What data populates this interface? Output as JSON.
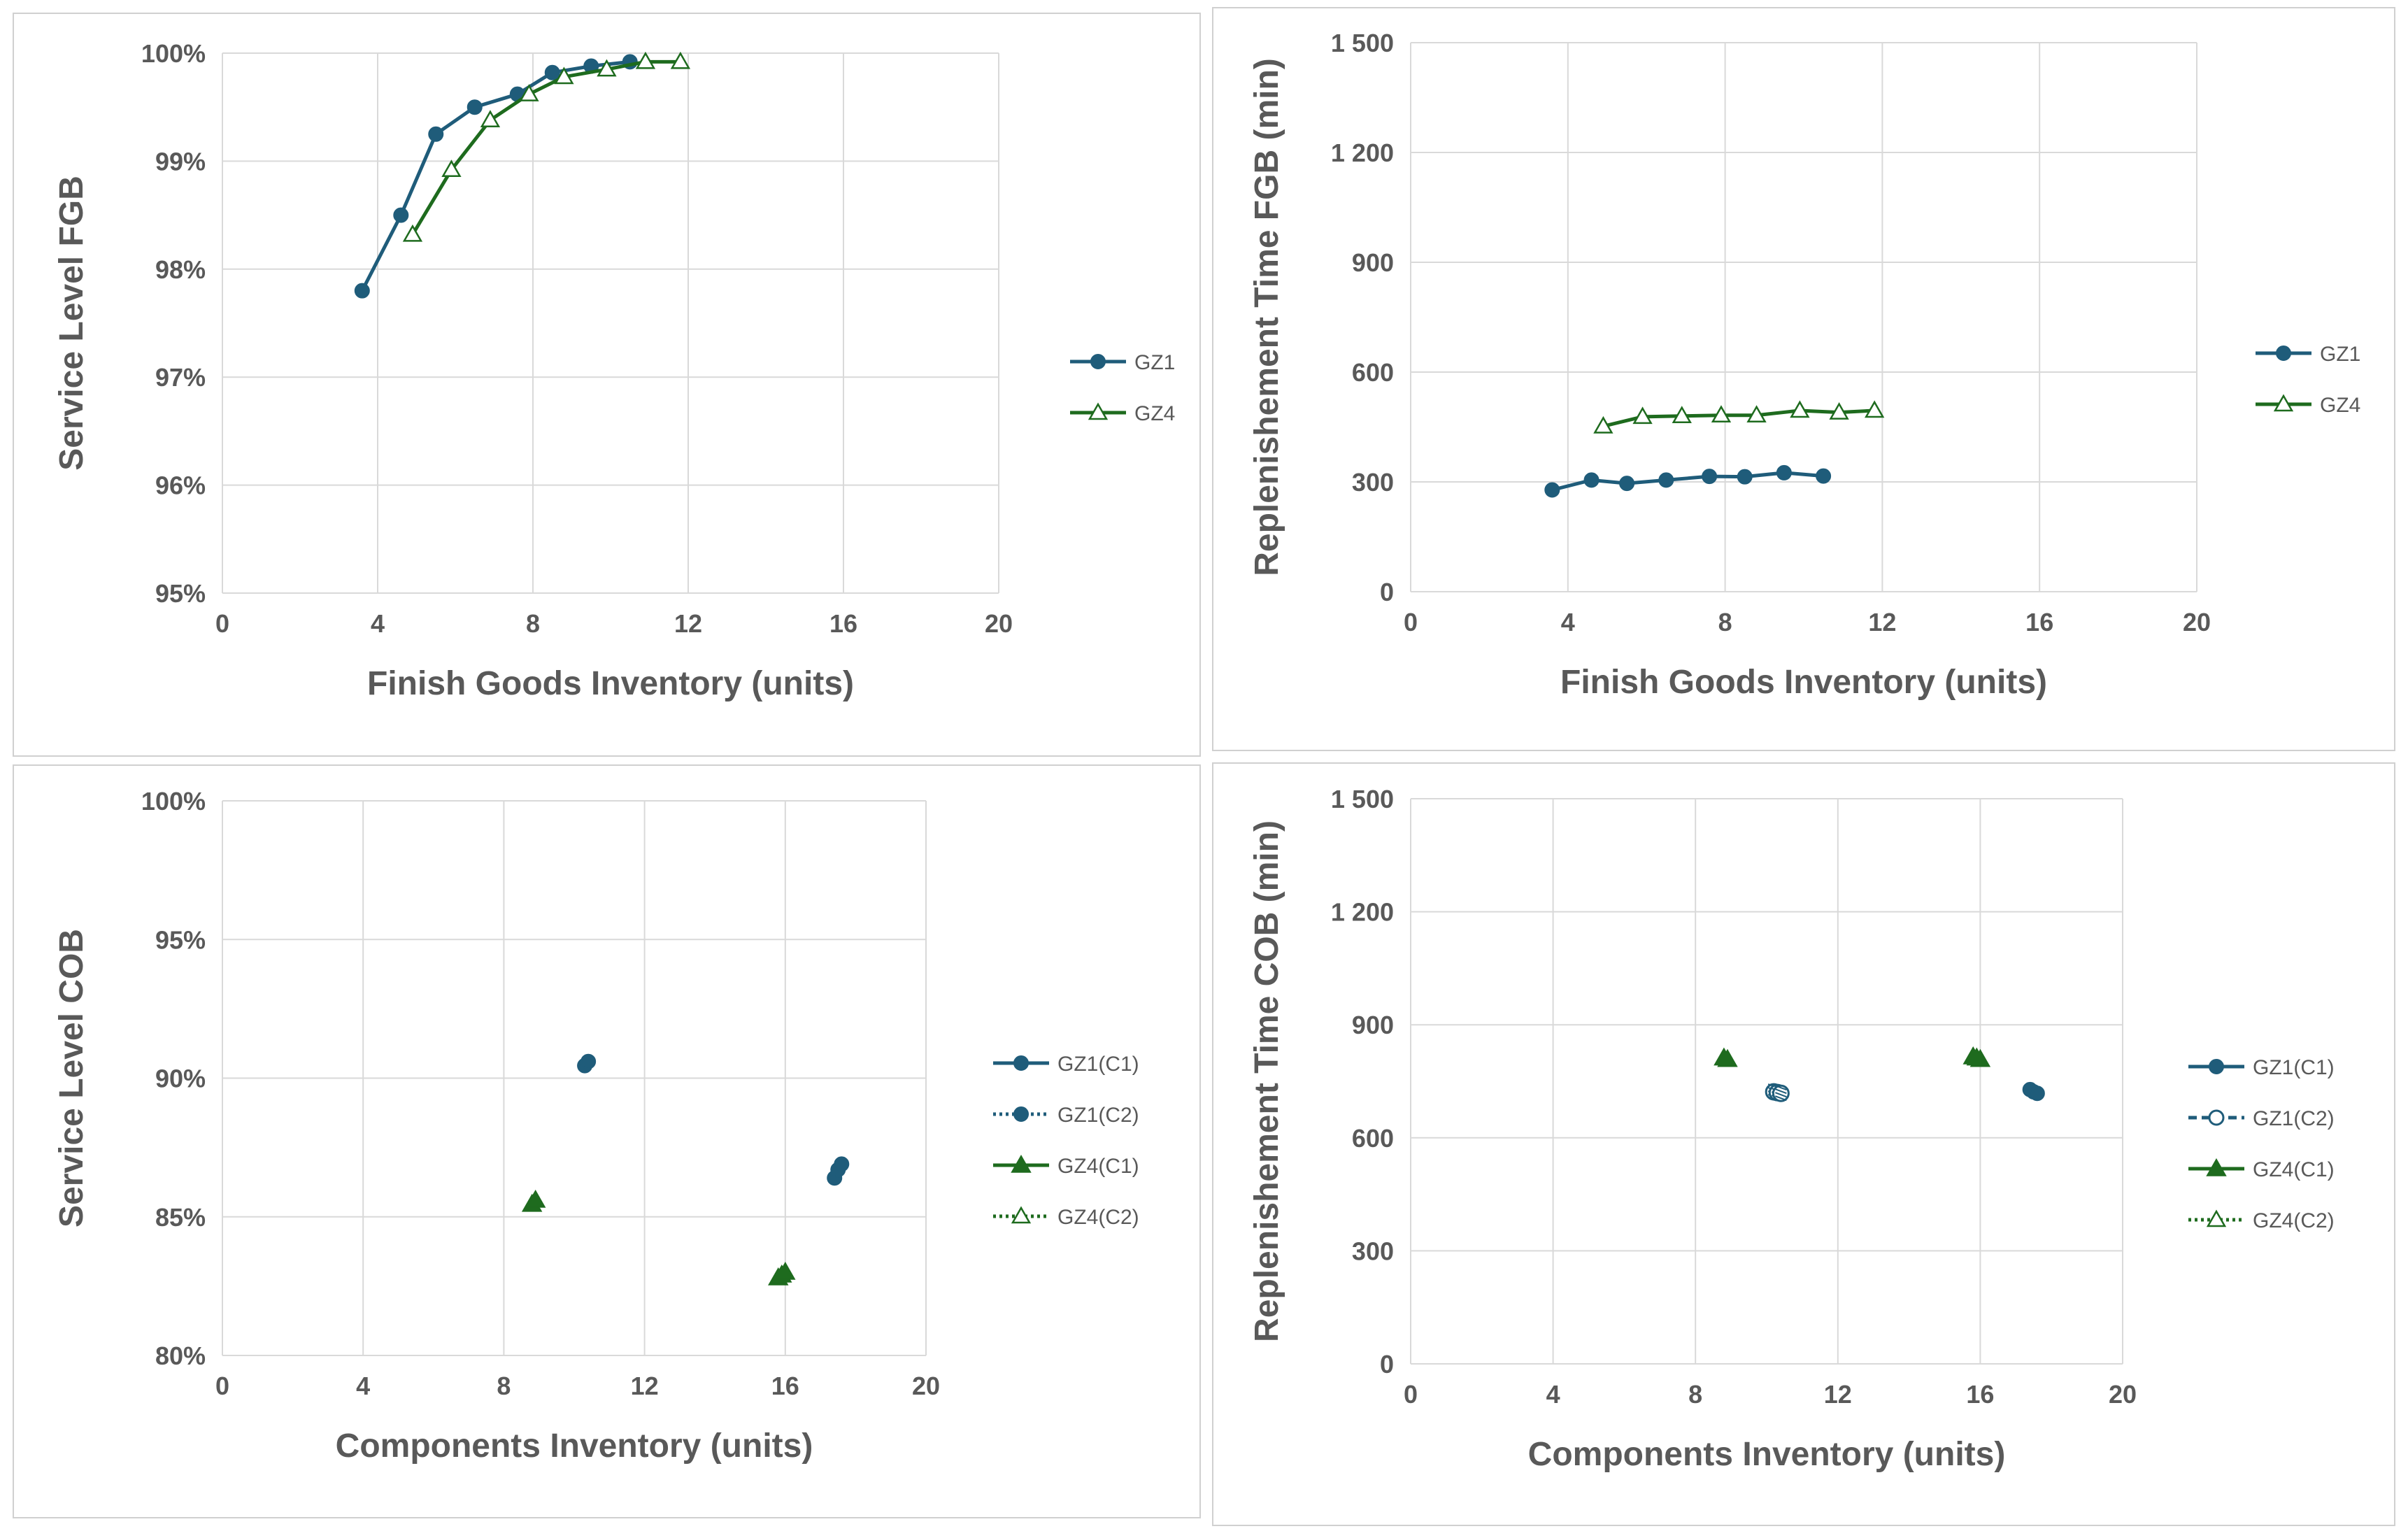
{
  "colors": {
    "gz1": "#1f5c7a",
    "gz4": "#1e6b1e",
    "grid": "#d9d9d9",
    "text": "#595959"
  },
  "chart_data": [
    {
      "type": "line",
      "xlabel": "Finish Goods Inventory  (units)",
      "ylabel": "Service Level FGB",
      "xlim": [
        0,
        20
      ],
      "ylim": [
        95,
        100
      ],
      "xticks": [
        0,
        4,
        8,
        12,
        16,
        20
      ],
      "xtick_labels": [
        "0",
        "4",
        "8",
        "12",
        "16",
        "20"
      ],
      "yticks": [
        95,
        96,
        97,
        98,
        99,
        100
      ],
      "ytick_labels": [
        "95%",
        "96%",
        "97%",
        "98%",
        "99%",
        "100%"
      ],
      "grid": true,
      "legend_position": "right",
      "series": [
        {
          "name": "GZ1",
          "color": "#1f5c7a",
          "marker": "circle",
          "line": "solid",
          "x": [
            3.6,
            4.6,
            5.5,
            6.5,
            7.6,
            8.5,
            9.5,
            10.5
          ],
          "y": [
            97.8,
            98.5,
            99.25,
            99.5,
            99.62,
            99.82,
            99.88,
            99.92
          ]
        },
        {
          "name": "GZ4",
          "color": "#1e6b1e",
          "marker": "triangle-open",
          "line": "solid",
          "x": [
            4.9,
            5.9,
            6.9,
            7.9,
            8.8,
            9.9,
            10.9,
            11.8
          ],
          "y": [
            98.32,
            98.92,
            99.38,
            99.62,
            99.78,
            99.85,
            99.92,
            99.92
          ]
        }
      ]
    },
    {
      "type": "line",
      "xlabel": "Finish Goods Inventory  (units)",
      "ylabel": "Replenishement Time FGB (min)",
      "xlim": [
        0,
        20
      ],
      "ylim": [
        0,
        1500
      ],
      "xticks": [
        0,
        4,
        8,
        12,
        16,
        20
      ],
      "xtick_labels": [
        "0",
        "4",
        "8",
        "12",
        "16",
        "20"
      ],
      "yticks": [
        0,
        300,
        600,
        900,
        1200,
        1500
      ],
      "ytick_labels": [
        "0",
        "300",
        "600",
        "900",
        "1 200",
        "1 500"
      ],
      "grid": true,
      "legend_position": "right",
      "series": [
        {
          "name": "GZ1",
          "color": "#1f5c7a",
          "marker": "circle",
          "line": "solid",
          "x": [
            3.6,
            4.6,
            5.5,
            6.5,
            7.6,
            8.5,
            9.5,
            10.5
          ],
          "y": [
            278,
            305,
            296,
            305,
            315,
            314,
            325,
            316
          ]
        },
        {
          "name": "GZ4",
          "color": "#1e6b1e",
          "marker": "triangle-open",
          "line": "solid",
          "x": [
            4.9,
            5.9,
            6.9,
            7.9,
            8.8,
            9.9,
            10.9,
            11.8
          ],
          "y": [
            452,
            478,
            480,
            482,
            482,
            495,
            490,
            495
          ]
        }
      ]
    },
    {
      "type": "scatter",
      "xlabel": "Components Inventory  (units)",
      "ylabel": "Service Level COB",
      "xlim": [
        0,
        20
      ],
      "ylim": [
        80,
        100
      ],
      "xticks": [
        0,
        4,
        8,
        12,
        16,
        20
      ],
      "xtick_labels": [
        "0",
        "4",
        "8",
        "12",
        "16",
        "20"
      ],
      "yticks": [
        80,
        85,
        90,
        95,
        100
      ],
      "ytick_labels": [
        "80%",
        "85%",
        "90%",
        "95%",
        "100%"
      ],
      "grid": true,
      "legend_position": "right",
      "series": [
        {
          "name": "GZ1(C1)",
          "color": "#1f5c7a",
          "marker": "circle",
          "line": "solid",
          "legend_line": "solid",
          "x": [
            17.4,
            17.5,
            17.6
          ],
          "y": [
            86.4,
            86.7,
            86.9
          ]
        },
        {
          "name": "GZ1(C2)",
          "color": "#1f5c7a",
          "marker": "circle",
          "line": "none",
          "legend_line": "dotted",
          "x": [
            10.3,
            10.4
          ],
          "y": [
            90.45,
            90.6
          ]
        },
        {
          "name": "GZ4(C1)",
          "color": "#1e6b1e",
          "marker": "triangle",
          "line": "solid",
          "legend_line": "solid",
          "x": [
            15.8,
            15.9,
            16.0
          ],
          "y": [
            82.8,
            82.9,
            83.0
          ]
        },
        {
          "name": "GZ4(C2)",
          "color": "#1e6b1e",
          "marker": "triangle",
          "line": "none",
          "legend_line": "dotted",
          "legend_marker": "triangle-open",
          "x": [
            8.8,
            8.9
          ],
          "y": [
            85.45,
            85.6
          ]
        }
      ]
    },
    {
      "type": "scatter",
      "xlabel": "Components Inventory  (units)",
      "ylabel": "Replenishement Time COB (min)",
      "xlim": [
        0,
        20
      ],
      "ylim": [
        0,
        1500
      ],
      "xticks": [
        0,
        4,
        8,
        12,
        16,
        20
      ],
      "xtick_labels": [
        "0",
        "4",
        "8",
        "12",
        "16",
        "20"
      ],
      "yticks": [
        0,
        300,
        600,
        900,
        1200,
        1500
      ],
      "ytick_labels": [
        "0",
        "300",
        "600",
        "900",
        "1 200",
        "1 500"
      ],
      "grid": true,
      "legend_position": "right",
      "series": [
        {
          "name": "GZ1(C1)",
          "color": "#1f5c7a",
          "marker": "circle",
          "line": "solid",
          "legend_line": "solid",
          "x": [
            17.4,
            17.5,
            17.6
          ],
          "y": [
            728,
            722,
            718
          ]
        },
        {
          "name": "GZ1(C2)",
          "color": "#1f5c7a",
          "marker": "circle-hatched",
          "line": "none",
          "legend_line": "dashed",
          "legend_marker": "circle-open",
          "x": [
            10.2,
            10.3,
            10.4
          ],
          "y": [
            722,
            720,
            718
          ]
        },
        {
          "name": "GZ4(C1)",
          "color": "#1e6b1e",
          "marker": "triangle",
          "line": "solid",
          "legend_line": "solid",
          "x": [
            15.8,
            15.9,
            16.0
          ],
          "y": [
            815,
            812,
            808
          ]
        },
        {
          "name": "GZ4(C2)",
          "color": "#1e6b1e",
          "marker": "triangle",
          "line": "none",
          "legend_line": "dotted",
          "legend_marker": "triangle-open",
          "x": [
            8.8,
            8.9
          ],
          "y": [
            812,
            808
          ]
        }
      ]
    }
  ]
}
